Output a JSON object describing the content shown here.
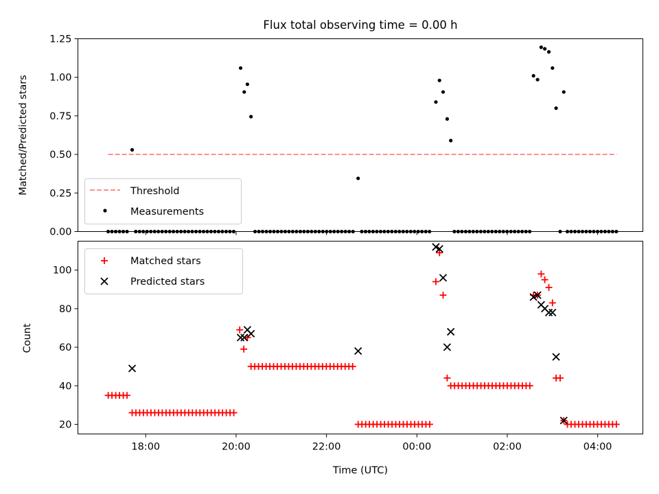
{
  "chart_data": {
    "type": "scatter",
    "title": "Flux total observing time = 0.00 h",
    "xlabel": "Time (UTC)",
    "x_unit": "hours",
    "x_ticks": [
      {
        "value": 18,
        "label": "18:00"
      },
      {
        "value": 20,
        "label": "20:00"
      },
      {
        "value": 22,
        "label": "22:00"
      },
      {
        "value": 24,
        "label": "00:00"
      },
      {
        "value": 26,
        "label": "02:00"
      },
      {
        "value": 28,
        "label": "04:00"
      }
    ],
    "xlim": [
      16.5,
      29.0
    ],
    "top_panel": {
      "ylabel": "Matched/Predicted stars",
      "ylim": [
        0,
        1.25
      ],
      "yticks": [
        "0.00",
        "0.25",
        "0.50",
        "0.75",
        "1.00",
        "1.25"
      ],
      "legend_position": "lower-left",
      "threshold": {
        "name": "Threshold",
        "y": 0.5,
        "x_range": [
          17.17,
          28.42
        ],
        "color": "#ff7f7f"
      },
      "measurements": {
        "name": "Measurements",
        "color": "#000000",
        "points": [
          [
            17.7,
            0.53
          ],
          [
            20.1,
            1.06
          ],
          [
            20.18,
            0.905
          ],
          [
            20.25,
            0.955
          ],
          [
            20.33,
            0.745
          ],
          [
            22.7,
            0.345
          ],
          [
            24.42,
            0.84
          ],
          [
            24.5,
            0.98
          ],
          [
            24.58,
            0.905
          ],
          [
            24.67,
            0.73
          ],
          [
            24.75,
            0.59
          ],
          [
            26.58,
            1.01
          ],
          [
            26.67,
            0.985
          ],
          [
            26.75,
            1.195
          ],
          [
            26.83,
            1.185
          ],
          [
            26.92,
            1.165
          ],
          [
            27.0,
            1.06
          ],
          [
            27.08,
            0.8
          ],
          [
            27.25,
            0.905
          ]
        ],
        "zero_ranges": [
          [
            17.17,
            17.62
          ],
          [
            17.78,
            19.95
          ],
          [
            20.42,
            22.62
          ],
          [
            22.78,
            24.33
          ],
          [
            24.83,
            26.5
          ],
          [
            27.17,
            27.17
          ],
          [
            27.33,
            28.42
          ]
        ],
        "zero_step": 0.0833
      }
    },
    "bottom_panel": {
      "ylabel": "Count",
      "ylim": [
        15,
        115
      ],
      "yticks": [
        20,
        40,
        60,
        80,
        100
      ],
      "legend_position": "upper-left",
      "series": [
        {
          "name": "Matched stars",
          "marker": "plus",
          "color": "#ff0000",
          "runs": [
            {
              "from": 17.17,
              "to": 17.62,
              "value": 35
            },
            {
              "from": 17.7,
              "to": 20.0,
              "value": 26
            },
            {
              "from": 20.33,
              "to": 22.62,
              "value": 50
            },
            {
              "from": 22.7,
              "to": 24.33,
              "value": 20
            },
            {
              "from": 24.75,
              "to": 26.5,
              "value": 40
            },
            {
              "from": 27.33,
              "to": 28.42,
              "value": 20
            }
          ],
          "points": [
            [
              20.08,
              69
            ],
            [
              20.17,
              59
            ],
            [
              20.25,
              65
            ],
            [
              24.42,
              94
            ],
            [
              24.5,
              109
            ],
            [
              24.58,
              87
            ],
            [
              24.67,
              44
            ],
            [
              26.58,
              87
            ],
            [
              26.67,
              87
            ],
            [
              26.75,
              98
            ],
            [
              26.83,
              95
            ],
            [
              26.92,
              91
            ],
            [
              27.0,
              83
            ],
            [
              27.08,
              44
            ],
            [
              27.17,
              44
            ],
            [
              27.25,
              22
            ]
          ]
        },
        {
          "name": "Predicted stars",
          "marker": "x",
          "color": "#000000",
          "points": [
            [
              17.7,
              49
            ],
            [
              20.1,
              65
            ],
            [
              20.18,
              65
            ],
            [
              20.25,
              69
            ],
            [
              20.33,
              67
            ],
            [
              22.7,
              58
            ],
            [
              24.42,
              112
            ],
            [
              24.5,
              111
            ],
            [
              24.58,
              96
            ],
            [
              24.67,
              60
            ],
            [
              24.75,
              68
            ],
            [
              26.58,
              86
            ],
            [
              26.67,
              87
            ],
            [
              26.75,
              82
            ],
            [
              26.83,
              80
            ],
            [
              26.92,
              78
            ],
            [
              27.0,
              78
            ],
            [
              27.08,
              55
            ],
            [
              27.25,
              22
            ]
          ]
        }
      ]
    }
  }
}
